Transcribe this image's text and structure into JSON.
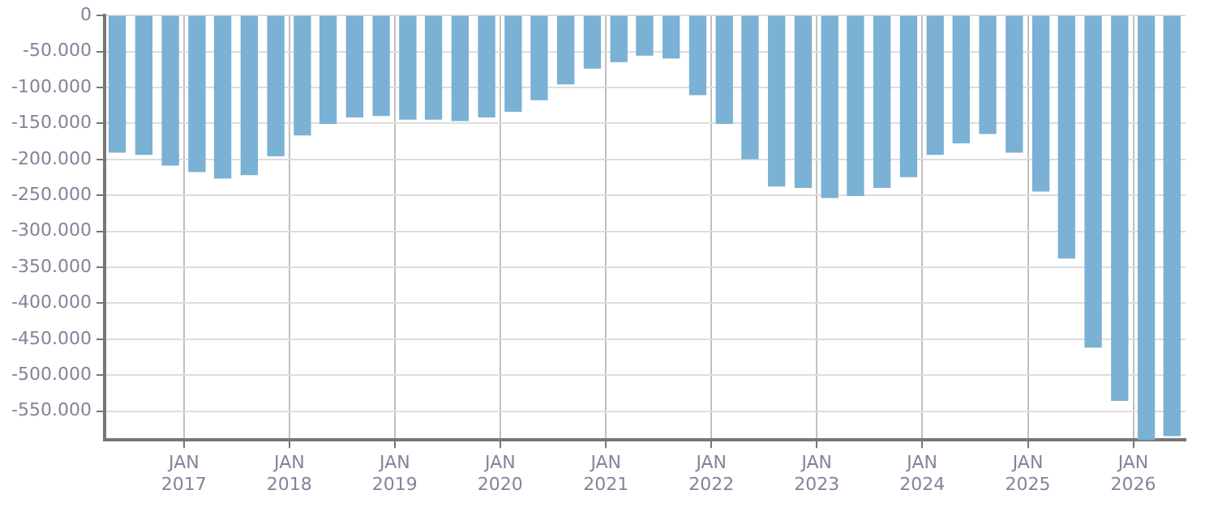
{
  "chart_data": {
    "type": "bar",
    "color": "#7ab1d4",
    "grid": true,
    "legend": false,
    "x": [
      "2016-05-15",
      "2016-08-15",
      "2016-11-15",
      "2017-02-15",
      "2017-05-15",
      "2017-08-15",
      "2017-11-15",
      "2018-02-15",
      "2018-05-15",
      "2018-08-15",
      "2018-11-15",
      "2019-02-15",
      "2019-05-15",
      "2019-08-15",
      "2019-11-15",
      "2020-02-15",
      "2020-05-15",
      "2020-08-15",
      "2020-11-15",
      "2021-02-15",
      "2021-05-15",
      "2021-08-15",
      "2021-11-15",
      "2022-02-15",
      "2022-05-15",
      "2022-08-15",
      "2022-11-15",
      "2023-02-15",
      "2023-05-15",
      "2023-08-15",
      "2023-11-15",
      "2024-02-15",
      "2024-05-15",
      "2024-08-15",
      "2024-11-15",
      "2025-02-15",
      "2025-05-15",
      "2025-08-15",
      "2025-11-15",
      "2026-02-15",
      "2026-05-15"
    ],
    "values": [
      -190000,
      -193000,
      -208000,
      -217000,
      -226000,
      -221000,
      -195000,
      -166000,
      -150000,
      -141000,
      -139000,
      -144000,
      -144000,
      -146000,
      -141000,
      -133000,
      -117000,
      -95000,
      -73000,
      -64000,
      -55000,
      -59000,
      -110000,
      -150000,
      -199000,
      -237000,
      -239000,
      -253000,
      -250000,
      -239000,
      -224000,
      -193000,
      -177000,
      -164000,
      -190000,
      -244000,
      -337000,
      -461000,
      -535000,
      -590000,
      -584000
    ],
    "xlim": [
      "2016-04-01",
      "2026-07-01"
    ],
    "xticks": [
      {
        "value": "2017-01-01",
        "label": "JAN 2017"
      },
      {
        "value": "2018-01-01",
        "label": "JAN 2018"
      },
      {
        "value": "2019-01-01",
        "label": "JAN 2019"
      },
      {
        "value": "2020-01-01",
        "label": "JAN 2020"
      },
      {
        "value": "2021-01-01",
        "label": "JAN 2021"
      },
      {
        "value": "2022-01-01",
        "label": "JAN 2022"
      },
      {
        "value": "2023-01-01",
        "label": "JAN 2023"
      },
      {
        "value": "2024-01-01",
        "label": "JAN 2024"
      },
      {
        "value": "2025-01-01",
        "label": "JAN 2025"
      },
      {
        "value": "2026-01-01",
        "label": "JAN 2026"
      }
    ],
    "ylim": [
      -590000,
      0
    ],
    "yticks": [
      {
        "value": 0,
        "label": "0"
      },
      {
        "value": -50000,
        "label": "-50.000"
      },
      {
        "value": -100000,
        "label": "-100.000"
      },
      {
        "value": -150000,
        "label": "-150.000"
      },
      {
        "value": -200000,
        "label": "-200.000"
      },
      {
        "value": -250000,
        "label": "-250.000"
      },
      {
        "value": -300000,
        "label": "-300.000"
      },
      {
        "value": -350000,
        "label": "-350.000"
      },
      {
        "value": -400000,
        "label": "-400.000"
      },
      {
        "value": -450000,
        "label": "-450.000"
      },
      {
        "value": -500000,
        "label": "-500.000"
      },
      {
        "value": -550000,
        "label": "-550.000"
      }
    ]
  }
}
